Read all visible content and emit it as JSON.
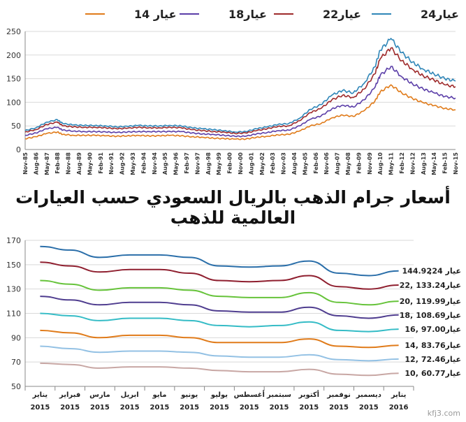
{
  "title": "أسعار جرام الذهب بالريال السعودي حسب العيارات العالمية للذهب",
  "watermark": "kfj3.com",
  "chart_data": [
    {
      "type": "line",
      "legend_placement": "top",
      "grid": true,
      "ylim": [
        0,
        250
      ],
      "yticks": [
        0,
        50,
        100,
        150,
        200,
        250
      ],
      "x_tick_labels": [
        "Nov-85",
        "Aug-86",
        "May-87",
        "Feb-88",
        "Nov-88",
        "Aug-89",
        "May-90",
        "Feb-91",
        "Nov-91",
        "Aug-92",
        "May-93",
        "Feb-94",
        "Nov-94",
        "Aug-95",
        "May-96",
        "Feb-97",
        "Nov-97",
        "Aug-98",
        "May-99",
        "Feb-00",
        "Nov-00",
        "Aug-01",
        "May-02",
        "Feb-03",
        "Nov-03",
        "Aug-04",
        "May-05",
        "Feb-06",
        "Nov-06",
        "Aug-07",
        "May-08",
        "Feb-09",
        "Nov-09",
        "Aug-10",
        "May-11",
        "Feb-12",
        "Nov-12",
        "Aug-13",
        "May-14",
        "Feb-15",
        "Nov-15"
      ],
      "x": [
        0,
        2,
        4,
        6,
        7,
        9,
        11,
        13,
        15,
        17,
        19,
        21,
        23,
        25,
        27,
        29,
        31,
        33,
        35,
        37,
        39,
        41,
        43,
        45,
        47,
        49,
        51,
        53,
        55,
        57,
        59,
        61,
        63,
        65,
        66,
        68,
        70,
        72,
        74,
        76,
        78,
        80
      ],
      "series": [
        {
          "name": "عيار24",
          "color": "#2f86b8",
          "values": [
            40,
            46,
            58,
            63,
            55,
            52,
            51,
            51,
            50,
            48,
            49,
            51,
            50,
            50,
            51,
            50,
            46,
            44,
            42,
            40,
            37,
            38,
            44,
            48,
            53,
            55,
            66,
            85,
            95,
            115,
            125,
            120,
            140,
            175,
            210,
            235,
            205,
            185,
            170,
            160,
            150,
            145
          ]
        },
        {
          "name": "عيار22",
          "color": "#9e2a2b",
          "values": [
            37,
            42,
            53,
            58,
            50,
            48,
            47,
            47,
            46,
            44,
            45,
            47,
            46,
            46,
            47,
            46,
            42,
            40,
            38,
            37,
            34,
            35,
            40,
            44,
            49,
            50,
            61,
            78,
            87,
            105,
            115,
            110,
            128,
            160,
            192,
            215,
            188,
            170,
            156,
            147,
            137,
            133
          ]
        },
        {
          "name": "عيار18",
          "color": "#5b3ea8",
          "values": [
            30,
            35,
            44,
            47,
            41,
            39,
            38,
            38,
            37,
            36,
            37,
            38,
            38,
            38,
            38,
            38,
            35,
            33,
            32,
            30,
            28,
            28,
            33,
            36,
            40,
            41,
            50,
            64,
            71,
            86,
            94,
            90,
            105,
            131,
            157,
            176,
            154,
            139,
            128,
            120,
            112,
            109
          ]
        },
        {
          "name": "عيار 14",
          "color": "#e07b1a",
          "values": [
            23,
            27,
            34,
            37,
            32,
            30,
            30,
            30,
            29,
            28,
            29,
            30,
            29,
            29,
            30,
            29,
            27,
            26,
            24,
            23,
            22,
            22,
            26,
            28,
            31,
            32,
            39,
            50,
            55,
            67,
            73,
            70,
            82,
            102,
            122,
            137,
            120,
            108,
            99,
            93,
            87,
            84
          ]
        }
      ]
    },
    {
      "type": "line",
      "legend_placement": "right",
      "grid": true,
      "ylim": [
        50,
        170
      ],
      "yticks": [
        50,
        70,
        90,
        110,
        130,
        150,
        170
      ],
      "categories": [
        {
          "month": "يناير",
          "year": "2015"
        },
        {
          "month": "فبراير",
          "year": "2015"
        },
        {
          "month": "مارس",
          "year": "2015"
        },
        {
          "month": "ابريل",
          "year": "2015"
        },
        {
          "month": "مايو",
          "year": "2015"
        },
        {
          "month": "يونيو",
          "year": "2015"
        },
        {
          "month": "يوليو",
          "year": "2015"
        },
        {
          "month": "أغسطس",
          "year": "2015"
        },
        {
          "month": "سبتمبر",
          "year": "2015"
        },
        {
          "month": "أكتوبر",
          "year": "2015"
        },
        {
          "month": "نوفمبر",
          "year": "2015"
        },
        {
          "month": "ديسمبر",
          "year": "2015"
        },
        {
          "month": "يناير",
          "year": "2016"
        }
      ],
      "series": [
        {
          "name": "عيار 24;",
          "value_label": "144.92",
          "color": "#2a6ea9",
          "values": [
            165,
            162,
            156,
            158,
            158,
            156,
            149,
            148,
            149,
            153,
            143,
            141,
            144.92
          ]
        },
        {
          "name": "عيار 22,",
          "value_label": "133.24",
          "color": "#8f1f2f",
          "values": [
            152,
            149,
            144,
            146,
            146,
            143,
            137,
            136,
            137,
            141,
            132,
            130,
            133.24
          ]
        },
        {
          "name": "عيار 20,",
          "value_label": "119.99",
          "color": "#66c33a",
          "values": [
            137,
            134,
            129,
            131,
            131,
            129,
            124,
            123,
            123,
            127,
            119,
            117,
            119.99
          ]
        },
        {
          "name": "عيار 18,",
          "value_label": "108.69",
          "color": "#4f3d8f",
          "values": [
            124,
            121,
            117,
            119,
            119,
            117,
            112,
            111,
            111,
            115,
            108,
            106,
            108.69
          ]
        },
        {
          "name": "عيار 16,",
          "value_label": "97.00",
          "color": "#35bcc6",
          "values": [
            110,
            108,
            104,
            106,
            106,
            104,
            100,
            99,
            100,
            103,
            96,
            95,
            97.0
          ]
        },
        {
          "name": "عيار 14,",
          "value_label": "83.76",
          "color": "#e07b1a",
          "values": [
            96,
            94,
            90,
            92,
            92,
            90,
            86,
            86,
            86,
            89,
            83,
            82,
            83.76
          ]
        },
        {
          "name": "عيار 12,",
          "value_label": "72.46",
          "color": "#93c1e4",
          "values": [
            83,
            81,
            78,
            79,
            79,
            78,
            75,
            74,
            74,
            76,
            72,
            71,
            72.46
          ]
        },
        {
          "name": "عيار 10,",
          "value_label": "60.77",
          "color": "#c8a7a4",
          "values": [
            69,
            68,
            65,
            66,
            66,
            65,
            63,
            62,
            62,
            64,
            60,
            59,
            60.77
          ]
        }
      ]
    }
  ]
}
